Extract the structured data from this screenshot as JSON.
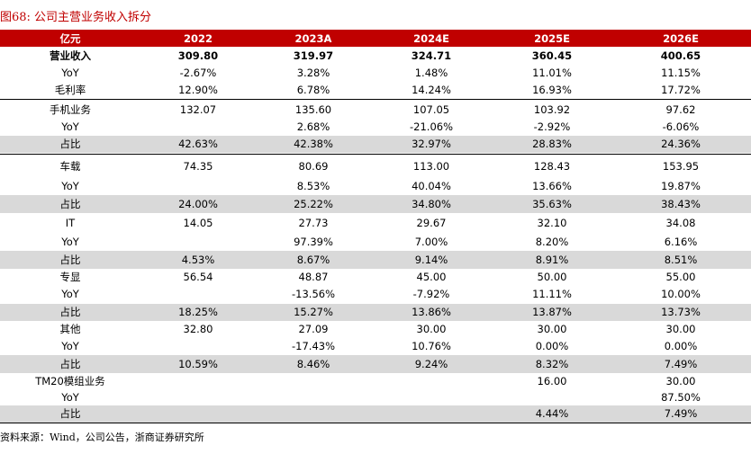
{
  "title": "图68:  公司主营业务收入拆分",
  "header": [
    "亿元",
    "2022",
    "2023A",
    "2024E",
    "2025E",
    "2026E"
  ],
  "rows": [
    {
      "label": "营业收入",
      "values": [
        "309.80",
        "319.97",
        "324.71",
        "360.45",
        "400.65"
      ]
    },
    {
      "label": "YoY",
      "values": [
        "-2.67%",
        "3.28%",
        "1.48%",
        "11.01%",
        "11.15%"
      ]
    },
    {
      "label": "毛利率",
      "values": [
        "12.90%",
        "6.78%",
        "14.24%",
        "16.93%",
        "17.72%"
      ]
    },
    {
      "label": "手机业务",
      "values": [
        "132.07",
        "135.60",
        "107.05",
        "103.92",
        "97.62"
      ]
    },
    {
      "label": "YoY",
      "values": [
        "",
        "2.68%",
        "-21.06%",
        "-2.92%",
        "-6.06%"
      ]
    },
    {
      "label": "占比",
      "values": [
        "42.63%",
        "42.38%",
        "32.97%",
        "28.83%",
        "24.36%"
      ]
    },
    {
      "label": "车载",
      "values": [
        "74.35",
        "80.69",
        "113.00",
        "128.43",
        "153.95"
      ]
    },
    {
      "label": "YoY",
      "values": [
        "",
        "8.53%",
        "40.04%",
        "13.66%",
        "19.87%"
      ]
    },
    {
      "label": "占比",
      "values": [
        "24.00%",
        "25.22%",
        "34.80%",
        "35.63%",
        "38.43%"
      ]
    },
    {
      "label": "IT",
      "values": [
        "14.05",
        "27.73",
        "29.67",
        "32.10",
        "34.08"
      ]
    },
    {
      "label": "YoY",
      "values": [
        "",
        "97.39%",
        "7.00%",
        "8.20%",
        "6.16%"
      ]
    },
    {
      "label": "占比",
      "values": [
        "4.53%",
        "8.67%",
        "9.14%",
        "8.91%",
        "8.51%"
      ]
    },
    {
      "label": "专显",
      "values": [
        "56.54",
        "48.87",
        "45.00",
        "50.00",
        "55.00"
      ]
    },
    {
      "label": "YoY",
      "values": [
        "",
        "-13.56%",
        "-7.92%",
        "11.11%",
        "10.00%"
      ]
    },
    {
      "label": "占比",
      "values": [
        "18.25%",
        "15.27%",
        "13.86%",
        "13.87%",
        "13.73%"
      ]
    },
    {
      "label": "其他",
      "values": [
        "32.80",
        "27.09",
        "30.00",
        "30.00",
        "30.00"
      ]
    },
    {
      "label": "YoY",
      "values": [
        "",
        "-17.43%",
        "10.76%",
        "0.00%",
        "0.00%"
      ]
    },
    {
      "label": "占比",
      "values": [
        "10.59%",
        "8.46%",
        "9.24%",
        "8.32%",
        "7.49%"
      ]
    },
    {
      "label": "TM20模组业务",
      "values": [
        "",
        "",
        "",
        "16.00",
        "30.00"
      ]
    },
    {
      "label": "YoY",
      "values": [
        "",
        "",
        "",
        "",
        "87.50%"
      ]
    },
    {
      "label": "占比",
      "values": [
        "",
        "",
        "",
        "4.44%",
        "7.49%"
      ]
    }
  ],
  "footer": "资料来源：Wind，公司公告，浙商证券研究所"
}
